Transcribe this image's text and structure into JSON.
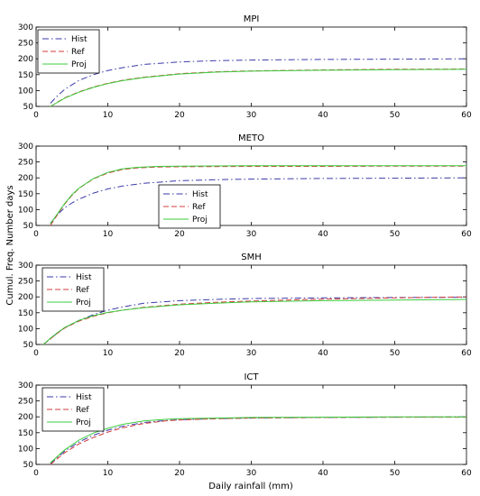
{
  "figure": {
    "xlabel": "Daily rainfall (mm)",
    "ylabel": "Cumul. Freq. Number days"
  },
  "chart_data": [
    {
      "type": "line",
      "title": "MPI",
      "xlim": [
        0,
        60
      ],
      "ylim": [
        50,
        300
      ],
      "xticks": [
        0,
        10,
        20,
        30,
        40,
        50,
        60
      ],
      "yticks": [
        50,
        100,
        150,
        200,
        250,
        300
      ],
      "legend_position": "top-left",
      "series": [
        {
          "name": "Hist",
          "color": "#3a3aa8",
          "dash": "dashdot",
          "x": [
            2,
            3,
            4,
            6,
            8,
            10,
            12,
            15,
            20,
            25,
            30,
            40,
            50,
            60
          ],
          "y": [
            60,
            84,
            104,
            132,
            150,
            163,
            172,
            182,
            190,
            194,
            196,
            198,
            199,
            200
          ]
        },
        {
          "name": "Ref",
          "color": "#d23c3c",
          "dash": "dashed",
          "x": [
            2,
            3,
            4,
            6,
            8,
            10,
            12,
            15,
            20,
            25,
            30,
            40,
            50,
            60
          ],
          "y": [
            50,
            64,
            77,
            96,
            111,
            123,
            132,
            142,
            153,
            159,
            162,
            165,
            167,
            168
          ]
        },
        {
          "name": "Proj",
          "color": "#3ccc3c",
          "dash": "solid",
          "x": [
            2,
            3,
            4,
            6,
            8,
            10,
            12,
            15,
            20,
            25,
            30,
            40,
            50,
            60
          ],
          "y": [
            50,
            63,
            76,
            95,
            110,
            122,
            131,
            141,
            152,
            158,
            161,
            164,
            166,
            167
          ]
        }
      ]
    },
    {
      "type": "line",
      "title": "METO",
      "xlim": [
        0,
        60
      ],
      "ylim": [
        50,
        300
      ],
      "xticks": [
        0,
        10,
        20,
        30,
        40,
        50,
        60
      ],
      "yticks": [
        50,
        100,
        150,
        200,
        250,
        300
      ],
      "legend_position": "center",
      "series": [
        {
          "name": "Hist",
          "color": "#3a3aa8",
          "dash": "dashdot",
          "x": [
            2,
            3,
            4,
            5,
            6,
            8,
            10,
            12,
            15,
            20,
            25,
            30,
            40,
            50,
            60
          ],
          "y": [
            57,
            85,
            106,
            121,
            133,
            152,
            165,
            174,
            183,
            191,
            194,
            196,
            198,
            199,
            200
          ]
        },
        {
          "name": "Ref",
          "color": "#d23c3c",
          "dash": "dashed",
          "x": [
            2,
            3,
            4,
            5,
            6,
            8,
            10,
            12,
            14,
            17,
            20,
            30,
            40,
            50,
            60
          ],
          "y": [
            50,
            85,
            118,
            145,
            167,
            197,
            215,
            226,
            231,
            234,
            235,
            236,
            236,
            237,
            237
          ]
        },
        {
          "name": "Proj",
          "color": "#3ccc3c",
          "dash": "solid",
          "x": [
            2,
            3,
            4,
            5,
            6,
            8,
            10,
            12,
            14,
            17,
            20,
            30,
            40,
            50,
            60
          ],
          "y": [
            55,
            88,
            120,
            147,
            168,
            198,
            217,
            228,
            233,
            236,
            237,
            238,
            238,
            238,
            238
          ]
        }
      ]
    },
    {
      "type": "line",
      "title": "SMH",
      "xlim": [
        0,
        60
      ],
      "ylim": [
        50,
        300
      ],
      "xticks": [
        0,
        10,
        20,
        30,
        40,
        50,
        60
      ],
      "yticks": [
        50,
        100,
        150,
        200,
        250,
        300
      ],
      "legend_position": "top-left",
      "series": [
        {
          "name": "Hist",
          "color": "#3a3aa8",
          "dash": "dashdot",
          "x": [
            1,
            2,
            3,
            4,
            6,
            8,
            10,
            12,
            15,
            20,
            25,
            30,
            40,
            50,
            60
          ],
          "y": [
            50,
            68,
            87,
            103,
            126,
            144,
            158,
            168,
            180,
            188,
            192,
            195,
            197,
            198,
            199
          ]
        },
        {
          "name": "Ref",
          "color": "#d23c3c",
          "dash": "dashed",
          "x": [
            1,
            2,
            3,
            4,
            6,
            8,
            10,
            12,
            15,
            20,
            25,
            30,
            40,
            50,
            60
          ],
          "y": [
            50,
            68,
            86,
            102,
            124,
            139,
            150,
            158,
            167,
            177,
            183,
            187,
            193,
            197,
            200
          ]
        },
        {
          "name": "Proj",
          "color": "#3ccc3c",
          "dash": "solid",
          "x": [
            1,
            2,
            3,
            4,
            6,
            8,
            10,
            12,
            15,
            20,
            25,
            30,
            40,
            50,
            60
          ],
          "y": [
            50,
            70,
            88,
            104,
            126,
            141,
            151,
            158,
            166,
            175,
            180,
            184,
            188,
            190,
            192
          ]
        }
      ]
    },
    {
      "type": "line",
      "title": "ICT",
      "xlim": [
        0,
        60
      ],
      "ylim": [
        50,
        300
      ],
      "xticks": [
        0,
        10,
        20,
        30,
        40,
        50,
        60
      ],
      "yticks": [
        50,
        100,
        150,
        200,
        250,
        300
      ],
      "legend_position": "top-left",
      "series": [
        {
          "name": "Hist",
          "color": "#3a3aa8",
          "dash": "dashdot",
          "x": [
            2,
            3,
            4,
            6,
            8,
            10,
            12,
            15,
            18,
            20,
            25,
            30,
            40,
            50,
            60
          ],
          "y": [
            52,
            73,
            92,
            121,
            142,
            158,
            170,
            182,
            188,
            191,
            194,
            196,
            198,
            199,
            200
          ]
        },
        {
          "name": "Ref",
          "color": "#d23c3c",
          "dash": "dashed",
          "x": [
            2,
            3,
            4,
            6,
            8,
            10,
            12,
            15,
            18,
            20,
            25,
            30,
            40,
            50,
            60
          ],
          "y": [
            50,
            69,
            87,
            115,
            135,
            152,
            165,
            179,
            187,
            190,
            194,
            196,
            198,
            199,
            199
          ]
        },
        {
          "name": "Proj",
          "color": "#3ccc3c",
          "dash": "solid",
          "x": [
            2,
            3,
            4,
            6,
            8,
            10,
            12,
            15,
            18,
            20,
            25,
            30,
            40,
            50,
            60
          ],
          "y": [
            55,
            76,
            96,
            127,
            149,
            164,
            176,
            187,
            192,
            194,
            196,
            198,
            199,
            200,
            200
          ]
        }
      ]
    }
  ]
}
